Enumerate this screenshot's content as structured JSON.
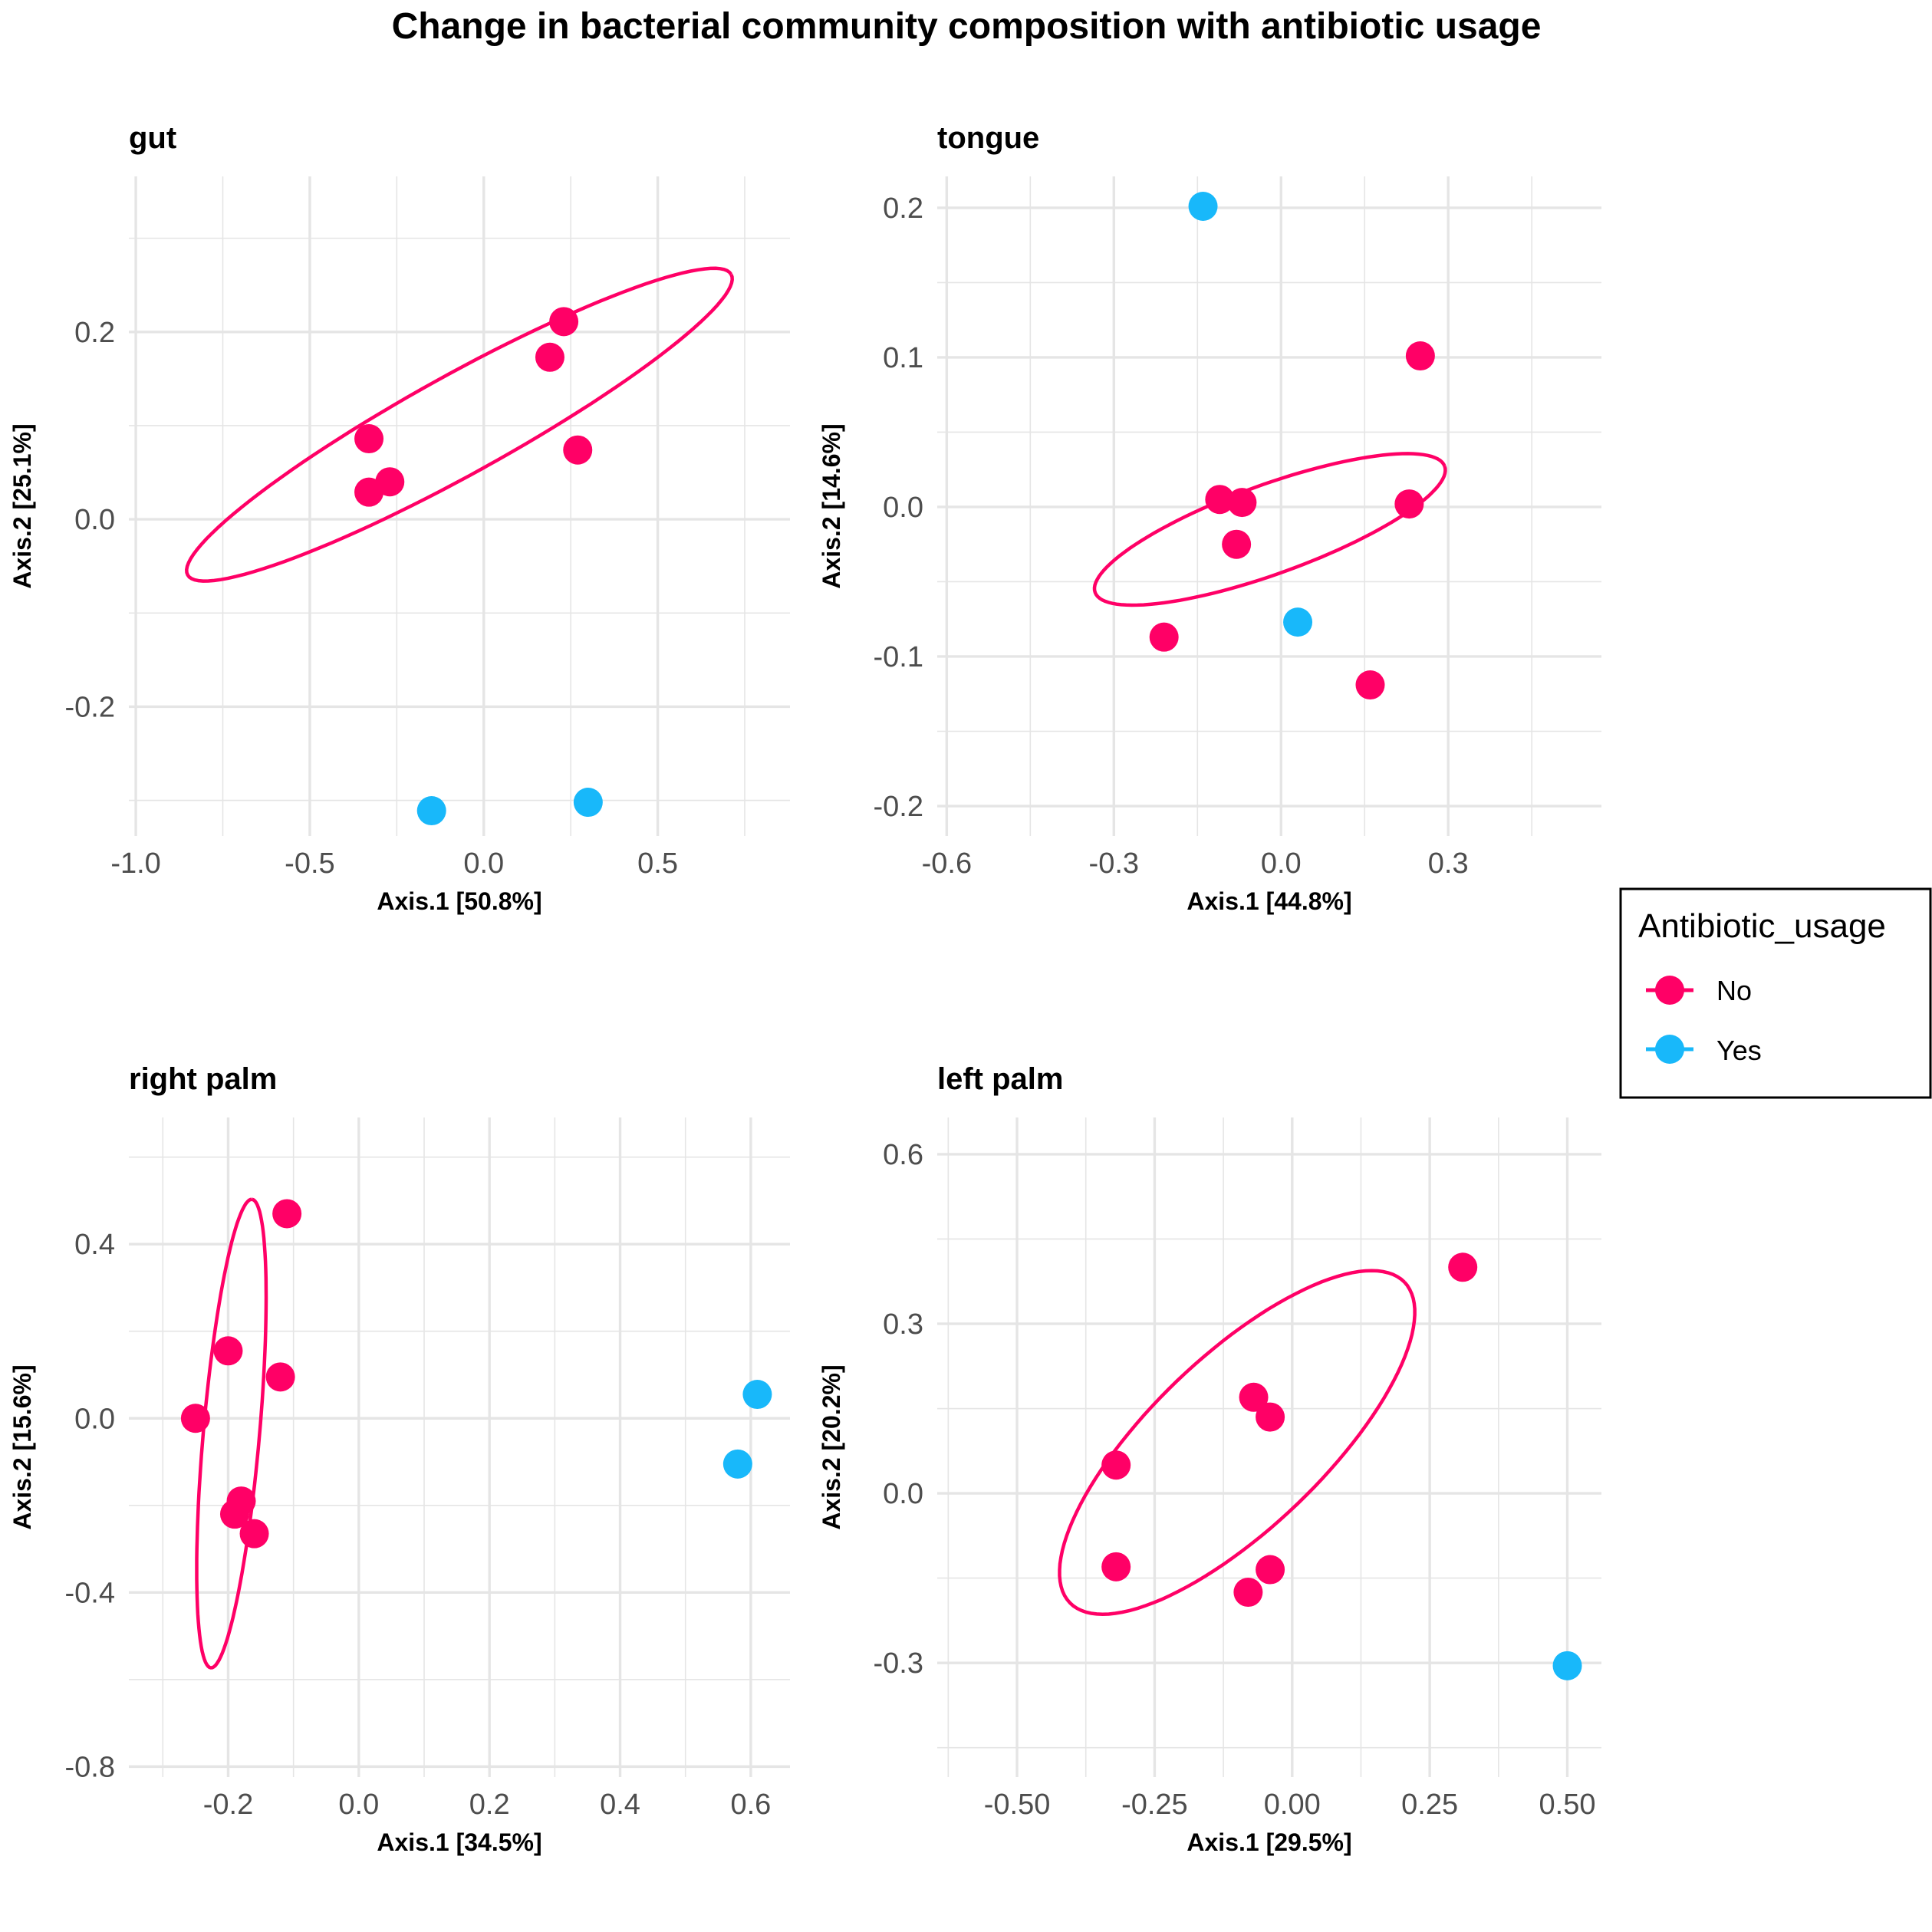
{
  "title": "Change in bacterial community composition with antibiotic usage",
  "legend": {
    "title": "Antibiotic_usage",
    "placement": "right",
    "items": [
      {
        "label": "No",
        "color": "#FF0066"
      },
      {
        "label": "Yes",
        "color": "#18B8FA"
      }
    ]
  },
  "colors": {
    "No": "#FF0066",
    "Yes": "#18B8FA",
    "grid": "#E5E5E5"
  },
  "chart_data": [
    {
      "type": "scatter",
      "title": "gut",
      "xlabel": "Axis.1   [50.8%]",
      "ylabel": "Axis.2   [25.1%]",
      "xlim": [
        -1.02,
        0.88
      ],
      "ylim": [
        -0.338,
        0.366
      ],
      "xticks": [
        -1.0,
        -0.5,
        0.0,
        0.5
      ],
      "xtick_labels": [
        "-1.0",
        "-0.5",
        "0.0",
        "0.5"
      ],
      "yticks": [
        -0.2,
        0.0,
        0.2
      ],
      "ytick_labels": [
        "-0.2",
        "0.0",
        "0.2"
      ],
      "grid": true,
      "series": [
        {
          "name": "No",
          "points": [
            [
              0.23,
              0.211
            ],
            [
              0.19,
              0.173
            ],
            [
              -0.33,
              0.086
            ],
            [
              -0.27,
              0.04
            ],
            [
              -0.33,
              0.029
            ],
            [
              0.27,
              0.074
            ]
          ]
        },
        {
          "name": "Yes",
          "points": [
            [
              -0.15,
              -0.311
            ],
            [
              0.3,
              -0.302
            ]
          ]
        }
      ],
      "ellipse_series": "No",
      "ellipse": {
        "cx": -0.07,
        "cy": 0.101,
        "rx": 0.94,
        "ry": 0.15,
        "angle_deg": 29
      }
    },
    {
      "type": "scatter",
      "title": "tongue",
      "xlabel": "Axis.1   [44.8%]",
      "ylabel": "Axis.2   [14.6%]",
      "xlim": [
        -0.617,
        0.575
      ],
      "ylim": [
        -0.22,
        0.221
      ],
      "xticks": [
        -0.6,
        -0.3,
        0.0,
        0.3
      ],
      "xtick_labels": [
        "-0.6",
        "-0.3",
        "0.0",
        "0.3"
      ],
      "yticks": [
        -0.2,
        -0.1,
        0.0,
        0.1,
        0.2
      ],
      "ytick_labels": [
        "-0.2",
        "-0.1",
        "0.0",
        "0.1",
        "0.2"
      ],
      "grid": true,
      "series": [
        {
          "name": "No",
          "points": [
            [
              0.25,
              0.101
            ],
            [
              -0.11,
              0.005
            ],
            [
              -0.07,
              0.003
            ],
            [
              -0.08,
              -0.025
            ],
            [
              0.23,
              0.002
            ],
            [
              -0.21,
              -0.087
            ],
            [
              0.16,
              -0.119
            ]
          ]
        },
        {
          "name": "Yes",
          "points": [
            [
              -0.14,
              0.201
            ],
            [
              0.03,
              -0.077
            ]
          ]
        }
      ],
      "ellipse_series": "No",
      "ellipse": {
        "cx": -0.02,
        "cy": -0.015,
        "rx": 0.56,
        "ry": 0.135,
        "angle_deg": 20
      }
    },
    {
      "type": "scatter",
      "title": "right palm",
      "xlabel": "Axis.1   [34.5%]",
      "ylabel": "Axis.2   [15.6%]",
      "xlim": [
        -0.352,
        0.66
      ],
      "ylim": [
        -0.824,
        0.691
      ],
      "xticks": [
        -0.2,
        0.0,
        0.2,
        0.4,
        0.6
      ],
      "xtick_labels": [
        "-0.2",
        "0.0",
        "0.2",
        "0.4",
        "0.6"
      ],
      "yticks": [
        -0.8,
        -0.4,
        0.0,
        0.4
      ],
      "ytick_labels": [
        "-0.8",
        "-0.4",
        "0.0",
        "0.4"
      ],
      "grid": true,
      "series": [
        {
          "name": "No",
          "points": [
            [
              -0.11,
              0.47
            ],
            [
              -0.2,
              0.155
            ],
            [
              -0.12,
              0.095
            ],
            [
              -0.25,
              0.0
            ],
            [
              -0.18,
              -0.19
            ],
            [
              -0.19,
              -0.22
            ],
            [
              -0.16,
              -0.265
            ]
          ]
        },
        {
          "name": "Yes",
          "points": [
            [
              0.61,
              0.055
            ],
            [
              0.58,
              -0.105
            ]
          ]
        }
      ],
      "ellipse_series": "No",
      "ellipse": {
        "cx": -0.195,
        "cy": -0.035,
        "rx": 0.713,
        "ry": 0.085,
        "angle_deg": 85
      }
    },
    {
      "type": "scatter",
      "title": "left palm",
      "xlabel": "Axis.1   [29.5%]",
      "ylabel": "Axis.2   [20.2%]",
      "xlim": [
        -0.645,
        0.562
      ],
      "ylim": [
        -0.502,
        0.665
      ],
      "xticks": [
        -0.5,
        -0.25,
        0.0,
        0.25,
        0.5
      ],
      "xtick_labels": [
        "-0.50",
        "-0.25",
        "0.00",
        "0.25",
        "0.50"
      ],
      "yticks": [
        -0.3,
        0.0,
        0.3,
        0.6
      ],
      "ytick_labels": [
        "-0.3",
        "0.0",
        "0.3",
        "0.6"
      ],
      "grid": true,
      "series": [
        {
          "name": "No",
          "points": [
            [
              0.31,
              0.4
            ],
            [
              -0.07,
              0.17
            ],
            [
              -0.04,
              0.135
            ],
            [
              -0.32,
              0.05
            ],
            [
              -0.32,
              -0.13
            ],
            [
              -0.04,
              -0.135
            ],
            [
              -0.08,
              -0.175
            ]
          ]
        },
        {
          "name": "Yes",
          "points": [
            [
              0.5,
              -0.305
            ]
          ]
        }
      ],
      "ellipse_series": "No",
      "ellipse": {
        "cx": -0.1,
        "cy": 0.09,
        "rx": 0.7,
        "ry": 0.26,
        "angle_deg": 44
      }
    }
  ]
}
